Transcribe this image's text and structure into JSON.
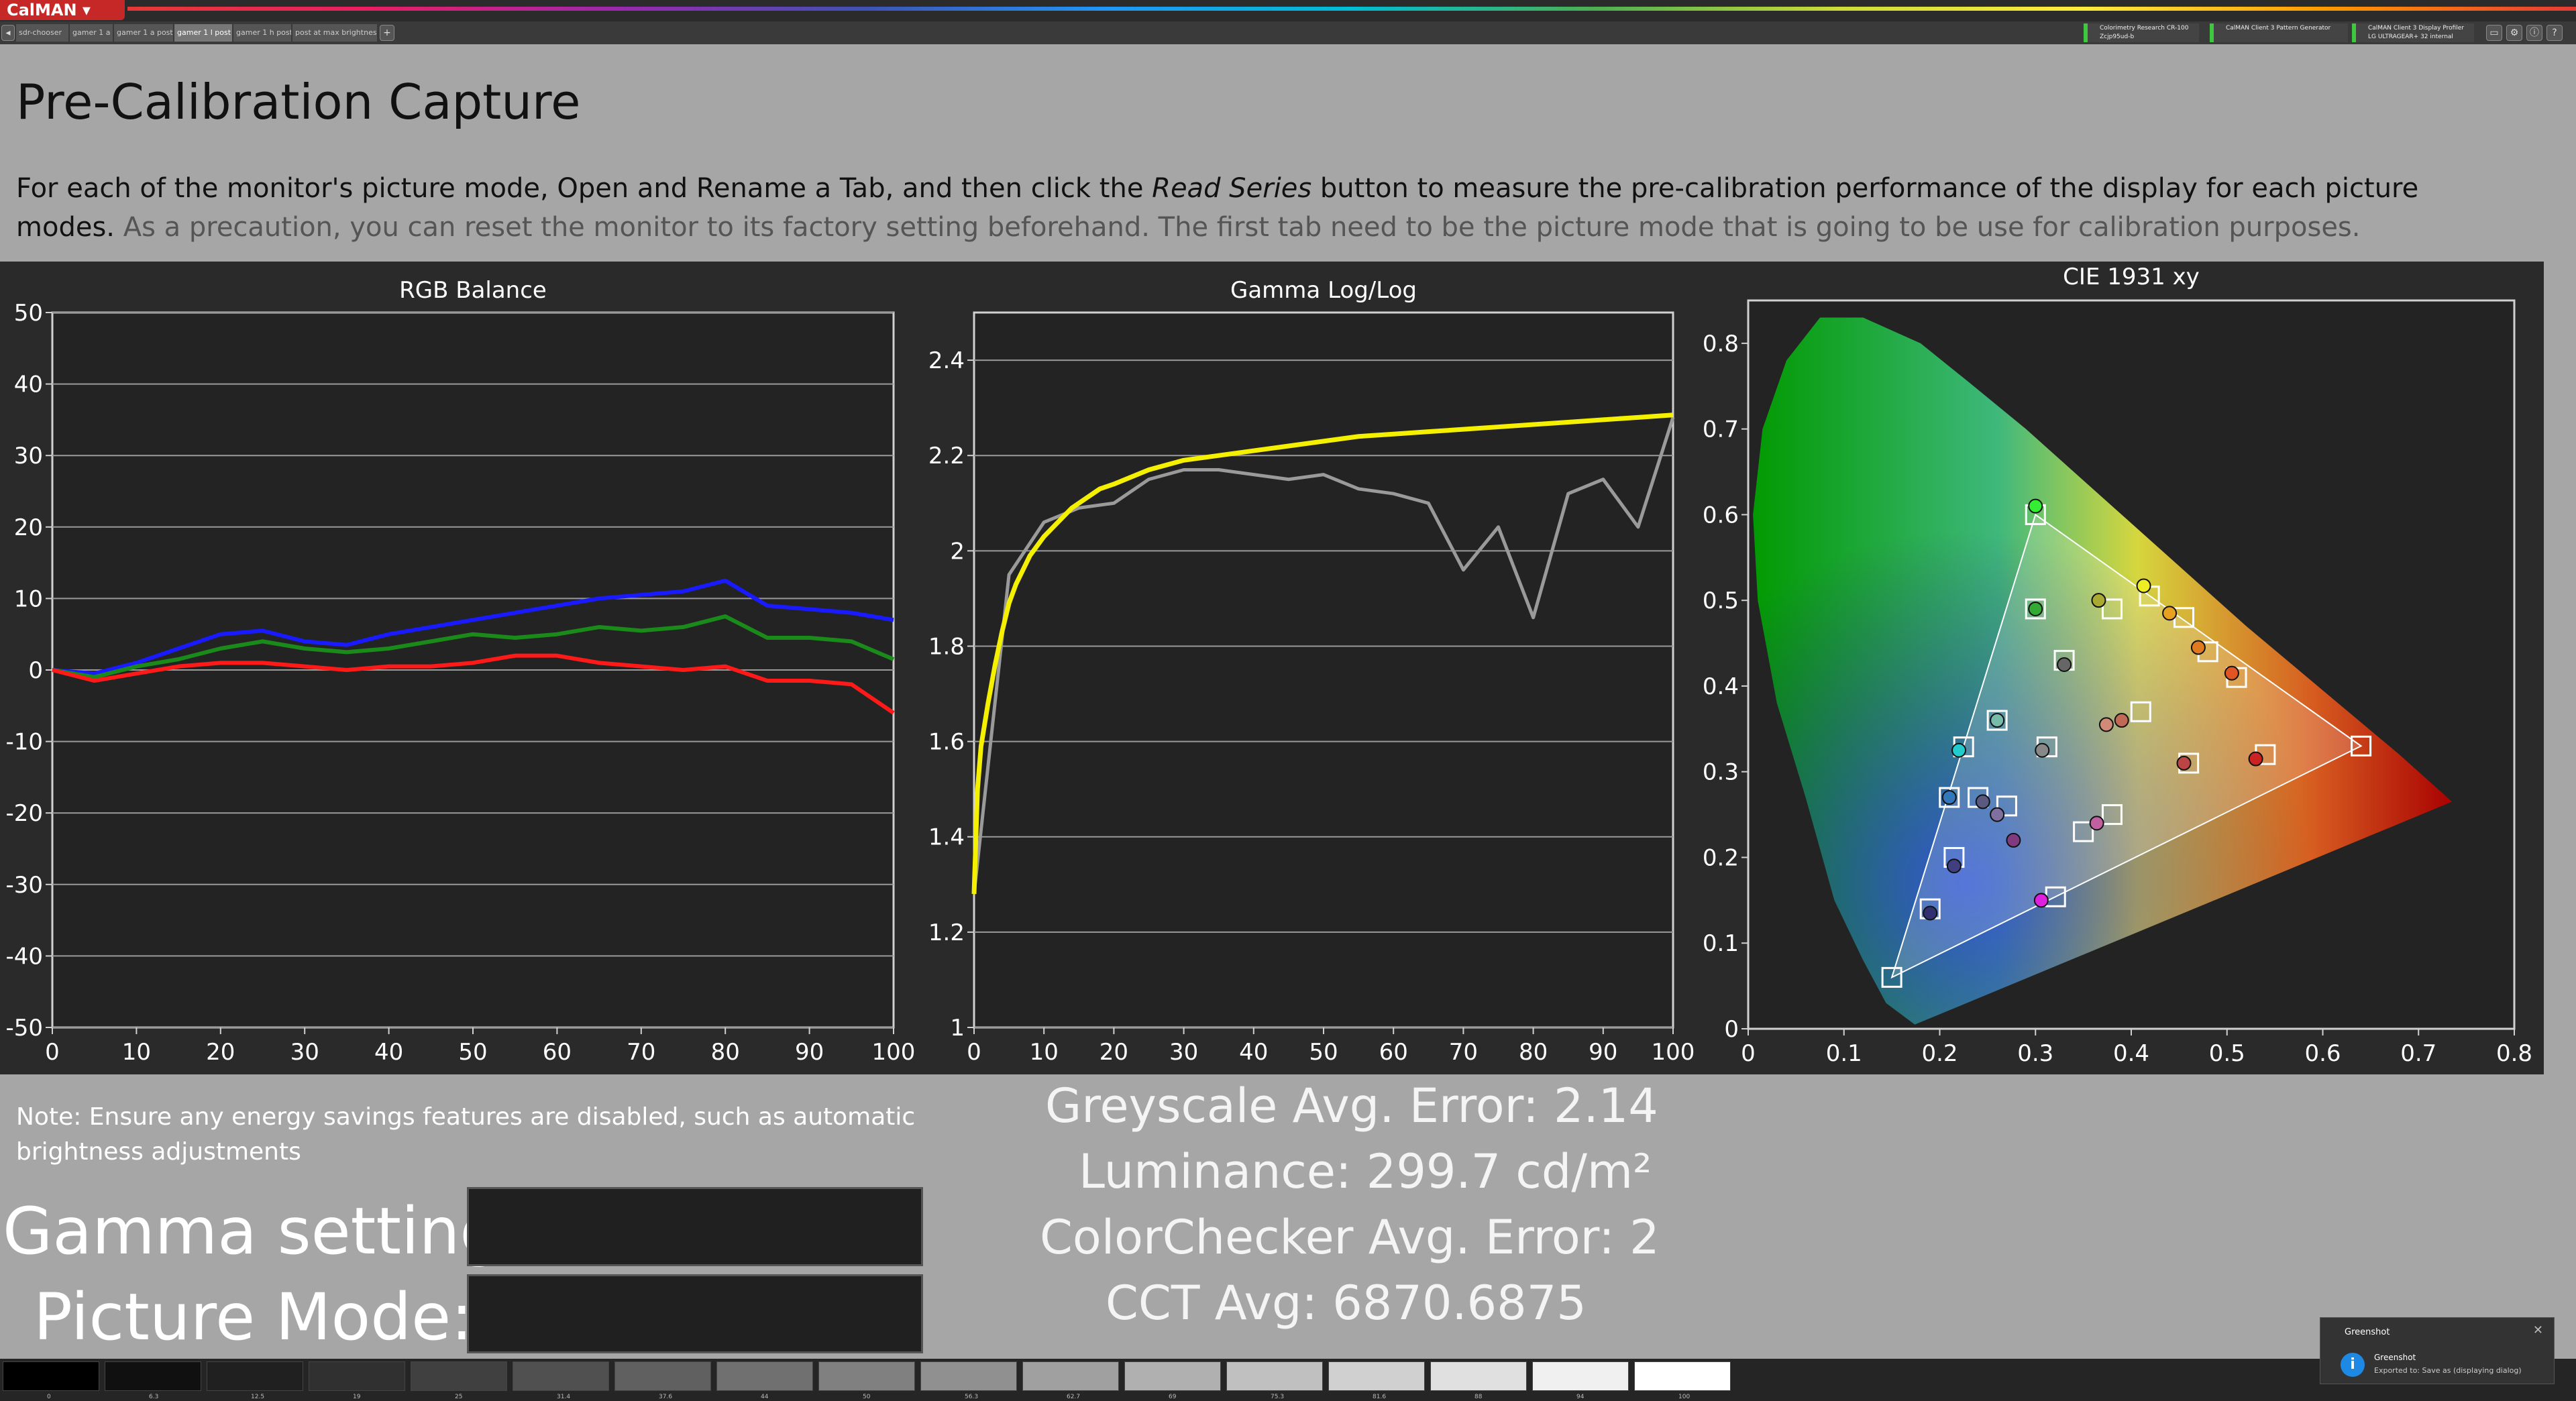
{
  "app": {
    "logo": "CalMAN ▾",
    "tabs": [
      "sdr-chooser",
      "gamer 1 a",
      "gamer 1 a post",
      "gamer 1 l post",
      "gamer 1 h post",
      "post at max brightness"
    ],
    "active_tab": 3,
    "devices": [
      {
        "line1": "Colorimetry Research CR-100",
        "line2": "Zcjp95ud-b"
      },
      {
        "line1": "CalMAN Client 3 Pattern Generator",
        "line2": ""
      },
      {
        "line1": "CalMAN Client 3 Display Profiler",
        "line2": "LG ULTRAGEAR+ 32 internal"
      }
    ]
  },
  "page": {
    "title": "Pre-Calibration Capture",
    "desc_part1": "For each of the monitor's picture mode, Open and Rename a Tab, and then click the ",
    "desc_em": "Read Series",
    "desc_part2": " button to measure the pre-calibration performance of the display for each picture modes.",
    "desc_part3": " As a precaution, you can reset the monitor to its factory setting beforehand. The first tab need to be the picture mode that is going to be use for calibration purposes.",
    "note": "Note: Ensure any energy savings features are disabled, such as automatic brightness adjustments",
    "gamma_label": "Gamma setting:",
    "picture_mode_label": "Picture Mode:",
    "gamma_value": "",
    "picture_mode_value": ""
  },
  "stats": {
    "greyscale": "Greyscale Avg. Error: 2.14",
    "luminance": "Luminance: 299.7 cd/m²",
    "colorchecker": "ColorChecker Avg. Error: 2",
    "cct": "CCT Avg: 6870.6875"
  },
  "chart_data": [
    {
      "type": "line",
      "title": "RGB Balance",
      "xlim": [
        0,
        100
      ],
      "ylim": [
        -50,
        50
      ],
      "xticks": [
        0,
        10,
        20,
        30,
        40,
        50,
        60,
        70,
        80,
        90,
        100
      ],
      "yticks": [
        50,
        40,
        30,
        20,
        10,
        0,
        -10,
        -20,
        -30,
        -40,
        -50
      ],
      "x": [
        0,
        5,
        10,
        15,
        20,
        25,
        30,
        35,
        40,
        45,
        50,
        55,
        60,
        65,
        70,
        75,
        80,
        85,
        90,
        95,
        100
      ],
      "series": [
        {
          "color": "#1a1aff",
          "values": [
            0,
            -0.5,
            1,
            3,
            5,
            5.5,
            4,
            3.5,
            5,
            6,
            7,
            8,
            9,
            10,
            10.5,
            11,
            12.5,
            9,
            8.5,
            8,
            7
          ]
        },
        {
          "color": "#1a8a1a",
          "values": [
            0,
            -1,
            0.5,
            1.5,
            3,
            4,
            3,
            2.5,
            3,
            4,
            5,
            4.5,
            5,
            6,
            5.5,
            6,
            7.5,
            4.5,
            4.5,
            4,
            1.5
          ]
        },
        {
          "color": "#ff1a1a",
          "values": [
            0,
            -1.5,
            -0.5,
            0.5,
            1,
            1,
            0.5,
            0,
            0.5,
            0.5,
            1,
            2,
            2,
            1,
            0.5,
            0,
            0.5,
            -1.5,
            -1.5,
            -2,
            -6
          ]
        }
      ]
    },
    {
      "type": "line",
      "title": "Gamma Log/Log",
      "xlim": [
        0,
        100
      ],
      "ylim": [
        1,
        2.5
      ],
      "xticks": [
        0,
        10,
        20,
        30,
        40,
        50,
        60,
        70,
        80,
        90,
        100
      ],
      "yticks": [
        2.4,
        2.2,
        2,
        1.8,
        1.6,
        1.4,
        1.2,
        1
      ],
      "series": [
        {
          "color": "#f5f000",
          "x": [
            0,
            0.5,
            1,
            2,
            3,
            4,
            5,
            6,
            7,
            8,
            10,
            12,
            14,
            16,
            18,
            20,
            25,
            30,
            35,
            40,
            45,
            50,
            55,
            60,
            65,
            70,
            75,
            80,
            85,
            90,
            95,
            100
          ],
          "values": [
            1.28,
            1.5,
            1.59,
            1.68,
            1.76,
            1.83,
            1.89,
            1.93,
            1.96,
            1.99,
            2.03,
            2.06,
            2.09,
            2.11,
            2.13,
            2.14,
            2.17,
            2.19,
            2.2,
            2.21,
            2.22,
            2.23,
            2.24,
            2.245,
            2.25,
            2.255,
            2.26,
            2.265,
            2.27,
            2.275,
            2.28,
            2.285
          ]
        },
        {
          "color": "#9a9a9a",
          "x": [
            0,
            5,
            10,
            15,
            20,
            25,
            30,
            35,
            40,
            45,
            50,
            55,
            60,
            65,
            70,
            75,
            80,
            85,
            90,
            95,
            100
          ],
          "values": [
            1.28,
            1.95,
            2.06,
            2.09,
            2.1,
            2.15,
            2.17,
            2.17,
            2.16,
            2.15,
            2.16,
            2.13,
            2.12,
            2.1,
            1.96,
            2.05,
            1.86,
            2.12,
            2.15,
            2.05,
            2.28
          ]
        }
      ]
    },
    {
      "type": "scatter",
      "title": "CIE 1931 xy",
      "xlim": [
        0,
        0.8
      ],
      "ylim": [
        0,
        0.85
      ],
      "xticks": [
        0,
        0.1,
        0.2,
        0.3,
        0.4,
        0.5,
        0.6,
        0.7,
        0.8
      ],
      "yticks": [
        0.8,
        0.7,
        0.6,
        0.5,
        0.4,
        0.3,
        0.2,
        0.1,
        0
      ],
      "gamut_triangle": [
        [
          0.64,
          0.33
        ],
        [
          0.3,
          0.6
        ],
        [
          0.15,
          0.06
        ]
      ],
      "targets": [
        [
          0.64,
          0.33
        ],
        [
          0.3,
          0.6
        ],
        [
          0.15,
          0.06
        ],
        [
          0.312,
          0.329
        ],
        [
          0.225,
          0.329
        ],
        [
          0.321,
          0.154
        ],
        [
          0.419,
          0.505
        ],
        [
          0.455,
          0.48
        ],
        [
          0.48,
          0.44
        ],
        [
          0.51,
          0.41
        ],
        [
          0.54,
          0.32
        ],
        [
          0.46,
          0.31
        ],
        [
          0.41,
          0.37
        ],
        [
          0.38,
          0.25
        ],
        [
          0.35,
          0.23
        ],
        [
          0.33,
          0.43
        ],
        [
          0.38,
          0.49
        ],
        [
          0.3,
          0.49
        ],
        [
          0.26,
          0.36
        ],
        [
          0.24,
          0.27
        ],
        [
          0.27,
          0.26
        ],
        [
          0.21,
          0.27
        ],
        [
          0.215,
          0.2
        ],
        [
          0.19,
          0.14
        ]
      ],
      "measured": [
        {
          "x": 0.3,
          "y": 0.61,
          "c": "#33ee33"
        },
        {
          "x": 0.3,
          "y": 0.49,
          "c": "#33aa33"
        },
        {
          "x": 0.366,
          "y": 0.5,
          "c": "#aaaa33"
        },
        {
          "x": 0.413,
          "y": 0.517,
          "c": "#eeee22"
        },
        {
          "x": 0.44,
          "y": 0.485,
          "c": "#e8a020"
        },
        {
          "x": 0.47,
          "y": 0.445,
          "c": "#e07a20"
        },
        {
          "x": 0.505,
          "y": 0.415,
          "c": "#e05522"
        },
        {
          "x": 0.53,
          "y": 0.315,
          "c": "#cc2222"
        },
        {
          "x": 0.455,
          "y": 0.31,
          "c": "#bb4444"
        },
        {
          "x": 0.39,
          "y": 0.36,
          "c": "#c06a55"
        },
        {
          "x": 0.374,
          "y": 0.355,
          "c": "#d08a78"
        },
        {
          "x": 0.364,
          "y": 0.24,
          "c": "#c060a0"
        },
        {
          "x": 0.33,
          "y": 0.425,
          "c": "#666666"
        },
        {
          "x": 0.307,
          "y": 0.325,
          "c": "#888888"
        },
        {
          "x": 0.26,
          "y": 0.36,
          "c": "#77bbaa"
        },
        {
          "x": 0.22,
          "y": 0.325,
          "c": "#22cccc"
        },
        {
          "x": 0.21,
          "y": 0.27,
          "c": "#3377bb"
        },
        {
          "x": 0.245,
          "y": 0.265,
          "c": "#5a5a80"
        },
        {
          "x": 0.26,
          "y": 0.25,
          "c": "#8070a0"
        },
        {
          "x": 0.277,
          "y": 0.22,
          "c": "#803a80"
        },
        {
          "x": 0.215,
          "y": 0.19,
          "c": "#404080"
        },
        {
          "x": 0.19,
          "y": 0.135,
          "c": "#303070"
        },
        {
          "x": 0.306,
          "y": 0.15,
          "c": "#dd22dd"
        }
      ]
    }
  ],
  "swatch_strip": {
    "labels": [
      "0",
      "6.3",
      "12.5",
      "19",
      "25",
      "31.4",
      "37.6",
      "44",
      "50",
      "56.3",
      "62.7",
      "69",
      "75.3",
      "81.6",
      "88",
      "94",
      "100"
    ]
  },
  "toast": {
    "app": "Greenshot",
    "title": "Greenshot",
    "message": "Exported to: Save as (displaying dialog)",
    "close": "✕"
  }
}
